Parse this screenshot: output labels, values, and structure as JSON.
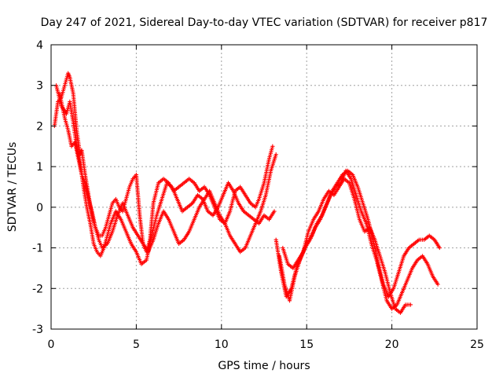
{
  "chart_data": {
    "type": "scatter",
    "marker": "plus",
    "title": "Day 247 of 2021, Sidereal Day-to-day VTEC variation (SDTVAR) for receiver p817",
    "xlabel": "GPS time / hours",
    "ylabel": "SDTVAR / TECUs",
    "xlim": [
      0,
      25
    ],
    "ylim": [
      -3,
      4
    ],
    "xticks": [
      "0",
      "5",
      "10",
      "15",
      "20",
      "25"
    ],
    "yticks": [
      "-3",
      "-2",
      "-1",
      "0",
      "1",
      "2",
      "3",
      "4"
    ],
    "grid": true,
    "legend": "none",
    "series": [
      {
        "name": "SDTVAR",
        "color": "#ff0000",
        "tracks": [
          {
            "x": [
              0.2,
              0.4,
              0.6,
              0.8,
              1.0,
              1.1,
              1.3,
              1.5,
              1.7,
              1.8,
              2.0,
              2.2,
              2.4,
              2.6,
              2.8,
              3.0,
              3.2,
              3.4,
              3.6,
              3.8,
              4.0,
              4.2,
              4.4,
              4.6,
              4.8,
              5.0,
              5.2,
              5.4,
              5.6,
              5.8,
              6.0,
              6.3,
              6.6,
              6.9,
              7.2,
              7.5,
              7.8,
              8.1,
              8.4,
              8.7,
              9.0,
              9.3,
              9.6,
              9.9,
              10.2,
              10.5,
              10.8,
              11.1,
              11.4,
              11.7,
              12.0,
              12.2,
              12.5,
              12.8,
              13.0
            ],
            "y": [
              2.0,
              2.6,
              2.7,
              3.0,
              3.3,
              3.2,
              2.8,
              1.9,
              1.3,
              1.4,
              0.8,
              0.3,
              -0.2,
              -0.5,
              -0.7,
              -0.7,
              -0.5,
              -0.2,
              0.1,
              0.2,
              0.0,
              -0.1,
              0.2,
              0.5,
              0.7,
              0.8,
              -0.2,
              -0.9,
              -1.1,
              -0.8,
              0.1,
              0.6,
              0.7,
              0.6,
              0.4,
              0.5,
              0.6,
              0.7,
              0.6,
              0.4,
              0.5,
              0.3,
              0.0,
              -0.3,
              -0.4,
              -0.1,
              0.4,
              0.5,
              0.3,
              0.1,
              0.0,
              0.2,
              0.6,
              1.2,
              1.5
            ]
          },
          {
            "x": [
              0.3,
              0.6,
              0.9,
              1.1,
              1.3,
              1.5,
              1.7,
              1.9,
              2.1,
              2.3,
              2.5,
              2.7,
              2.9,
              3.1,
              3.3,
              3.5,
              3.8,
              4.1,
              4.4,
              4.7,
              5.0,
              5.3,
              5.6,
              5.9,
              6.2,
              6.5,
              6.8,
              7.1,
              7.4,
              7.7,
              8.0,
              8.3,
              8.6,
              8.9,
              9.2,
              9.5,
              9.8,
              10.1,
              10.4,
              10.7,
              11.0,
              11.3,
              11.6,
              11.9,
              12.2,
              12.5,
              12.8,
              13.1
            ],
            "y": [
              3.0,
              2.5,
              2.3,
              2.6,
              2.1,
              1.5,
              1.1,
              0.5,
              0.0,
              -0.4,
              -0.9,
              -1.1,
              -1.2,
              -1.0,
              -0.7,
              -0.4,
              -0.1,
              -0.3,
              -0.6,
              -0.9,
              -1.1,
              -1.4,
              -1.3,
              -0.7,
              -0.2,
              0.2,
              0.6,
              0.5,
              0.2,
              -0.1,
              0.0,
              0.1,
              0.3,
              0.2,
              -0.1,
              -0.2,
              0.0,
              0.3,
              0.6,
              0.4,
              0.1,
              -0.1,
              -0.2,
              -0.3,
              -0.4,
              -0.2,
              -0.3,
              -0.1
            ]
          },
          {
            "x": [
              0.5,
              0.8,
              1.0,
              1.2,
              1.4,
              1.6,
              1.8,
              2.0,
              2.2,
              2.4,
              2.6,
              2.8,
              3.0,
              3.3,
              3.6,
              3.9,
              4.2,
              4.5,
              4.8,
              5.1,
              5.4,
              5.7,
              6.0,
              6.3,
              6.6,
              6.9,
              7.2,
              7.5,
              7.8,
              8.1,
              8.4,
              8.7,
              9.0,
              9.3,
              9.6,
              9.9,
              10.2,
              10.5,
              10.8,
              11.1,
              11.4,
              11.7,
              12.0,
              12.3,
              12.6,
              12.9,
              13.2
            ],
            "y": [
              2.8,
              2.2,
              1.9,
              1.5,
              1.6,
              1.2,
              0.8,
              0.6,
              0.2,
              -0.1,
              -0.5,
              -0.8,
              -1.0,
              -0.9,
              -0.6,
              -0.2,
              0.1,
              -0.2,
              -0.5,
              -0.7,
              -0.9,
              -1.1,
              -0.8,
              -0.4,
              -0.1,
              -0.3,
              -0.6,
              -0.9,
              -0.8,
              -0.6,
              -0.3,
              0.0,
              0.2,
              0.4,
              0.1,
              -0.2,
              -0.4,
              -0.7,
              -0.9,
              -1.1,
              -1.0,
              -0.7,
              -0.4,
              -0.1,
              0.3,
              0.9,
              1.3
            ]
          },
          {
            "x": [
              13.2,
              13.5,
              13.8,
              14.1,
              14.4,
              14.7,
              15.0,
              15.3,
              15.6,
              15.9,
              16.2,
              16.5,
              16.8,
              17.1,
              17.4,
              17.7,
              18.0,
              18.3,
              18.6,
              18.9,
              19.2,
              19.5,
              19.8,
              20.1,
              20.4,
              20.7,
              21.0,
              21.3,
              21.6,
              21.9,
              22.2,
              22.5,
              22.8
            ],
            "y": [
              -0.8,
              -1.6,
              -2.2,
              -2.0,
              -1.5,
              -1.2,
              -0.9,
              -0.7,
              -0.4,
              -0.2,
              0.1,
              0.4,
              0.6,
              0.8,
              0.9,
              0.8,
              0.5,
              0.1,
              -0.3,
              -0.8,
              -1.4,
              -1.9,
              -2.2,
              -2.0,
              -1.6,
              -1.2,
              -1.0,
              -0.9,
              -0.8,
              -0.8,
              -0.7,
              -0.8,
              -1.0
            ]
          },
          {
            "x": [
              13.4,
              13.7,
              14.0,
              14.3,
              14.6,
              14.9,
              15.2,
              15.5,
              15.8,
              16.1,
              16.4,
              16.7,
              17.0,
              17.3,
              17.6,
              17.9,
              18.2,
              18.5,
              18.8,
              19.1,
              19.4,
              19.7,
              20.0,
              20.3,
              20.6,
              20.9,
              21.2,
              21.5,
              21.8,
              22.1,
              22.4,
              22.7
            ],
            "y": [
              -1.2,
              -1.9,
              -2.3,
              -1.7,
              -1.3,
              -1.0,
              -0.8,
              -0.5,
              -0.3,
              0.0,
              0.3,
              0.5,
              0.6,
              0.9,
              0.7,
              0.3,
              -0.1,
              -0.4,
              -0.9,
              -1.3,
              -1.8,
              -2.3,
              -2.5,
              -2.4,
              -2.1,
              -1.8,
              -1.5,
              -1.3,
              -1.2,
              -1.4,
              -1.7,
              -1.9
            ]
          },
          {
            "x": [
              13.6,
              13.9,
              14.2,
              14.5,
              14.8,
              15.1,
              15.4,
              15.7,
              16.0,
              16.3,
              16.6,
              16.9,
              17.2,
              17.5,
              17.8,
              18.1,
              18.4,
              18.7,
              19.0,
              19.3,
              19.6,
              19.9,
              20.2,
              20.5,
              20.8,
              21.1
            ],
            "y": [
              -1.0,
              -1.4,
              -1.5,
              -1.3,
              -1.1,
              -0.6,
              -0.3,
              -0.1,
              0.2,
              0.4,
              0.3,
              0.5,
              0.7,
              0.6,
              0.2,
              -0.3,
              -0.6,
              -0.5,
              -0.8,
              -1.2,
              -1.6,
              -2.1,
              -2.5,
              -2.6,
              -2.4,
              -2.4
            ]
          }
        ]
      }
    ]
  }
}
